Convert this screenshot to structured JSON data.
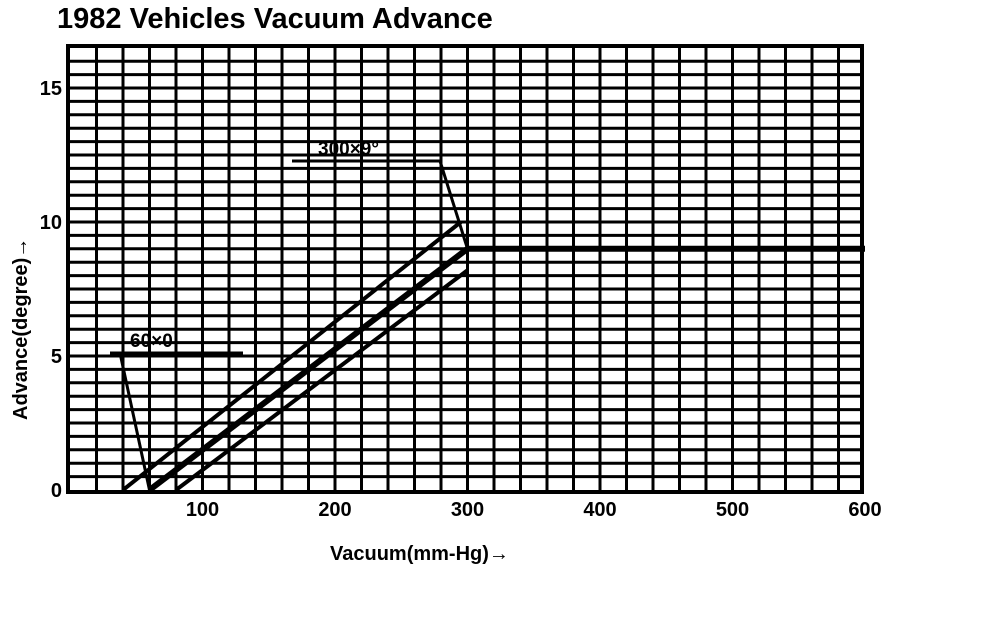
{
  "chart_data": {
    "type": "line",
    "title": "1982 Vehicles Vacuum Advance",
    "xlabel": "Vacuum(mm-Hg)→",
    "ylabel": "Advance(degree)→",
    "xlim": [
      0,
      600
    ],
    "ylim": [
      0,
      16.5
    ],
    "x_ticks": [
      "100",
      "200",
      "300",
      "400",
      "500",
      "600"
    ],
    "x_tick_values": [
      100,
      200,
      300,
      400,
      500,
      600
    ],
    "y_ticks": [
      "0",
      "5",
      "10",
      "15"
    ],
    "y_tick_values": [
      0,
      5,
      10,
      15
    ],
    "grid": true,
    "series": [
      {
        "x": [
          60,
          300,
          600
        ],
        "y": [
          0,
          9,
          9
        ]
      },
      {
        "x": [
          40,
          295
        ],
        "y": [
          0,
          10
        ]
      },
      {
        "x": [
          80,
          300
        ],
        "y": [
          0,
          8.2
        ]
      }
    ],
    "annotations": [
      {
        "text": "60×0",
        "x": 60,
        "y": 0
      },
      {
        "text": "300×9°",
        "x": 300,
        "y": 9
      }
    ]
  }
}
